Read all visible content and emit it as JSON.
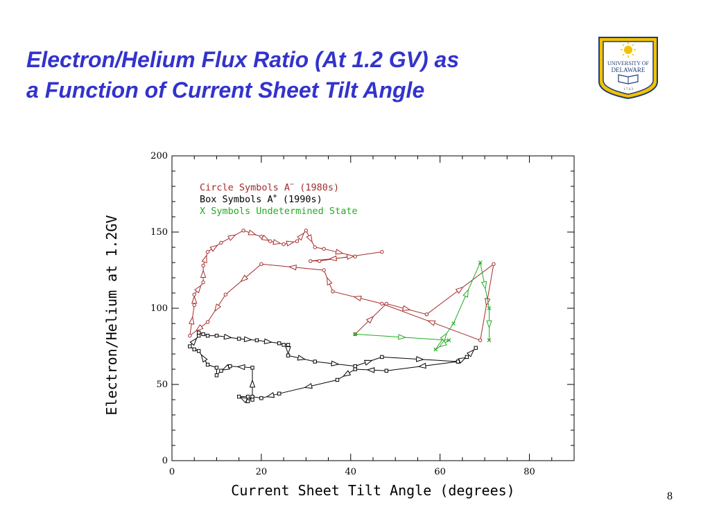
{
  "slide": {
    "title_line1": "Electron/Helium Flux Ratio (At 1.2 GV) as",
    "title_line2": "a Function of Current Sheet Tilt Angle",
    "page_number": "8",
    "title_color": "#3333cc"
  },
  "logo": {
    "line1": "UNIVERSITY OF",
    "line2": "DELAWARE",
    "year": "1 7 4 3",
    "primary_color": "#1f3a7a",
    "accent_color": "#f2c200"
  },
  "chart_data": {
    "type": "line",
    "title": "",
    "xlabel": "Current Sheet Tilt Angle (degrees)",
    "ylabel": "Electron/Helium at 1.2GV",
    "xlim": [
      0,
      90
    ],
    "ylim": [
      0,
      200
    ],
    "xticks": [
      0,
      20,
      40,
      60,
      80
    ],
    "yticks": [
      0,
      50,
      100,
      150,
      200
    ],
    "grid": false,
    "legend_position": "top-left",
    "legend": [
      {
        "text": "Circle Symbols A",
        "sup": "−",
        "suffix": " (1980s)",
        "color": "#a52a2a"
      },
      {
        "text": "Box Symbols A",
        "sup": "+",
        "suffix": " (1990s)",
        "color": "#000000"
      },
      {
        "text": "X Symbols Undetermined State",
        "sup": "",
        "suffix": "",
        "color": "#22aa22"
      }
    ],
    "series": [
      {
        "name": "Circle Symbols A− (1980s)",
        "marker": "circle",
        "color": "#a52a2a",
        "x": [
          41,
          48,
          57,
          72,
          69,
          47,
          36,
          34,
          20,
          12,
          8,
          4,
          5,
          5,
          7,
          7,
          8,
          11,
          16,
          20,
          22,
          25,
          28,
          30,
          32,
          34,
          41,
          31,
          33,
          47
        ],
        "y": [
          83,
          103,
          96,
          129,
          79,
          103,
          111,
          125,
          129,
          109,
          91,
          82,
          102,
          109,
          117,
          128,
          137,
          143,
          151,
          147,
          144,
          142,
          144,
          151,
          140,
          139,
          134,
          131,
          131,
          137
        ]
      },
      {
        "name": "Box Symbols A+ (1990s)",
        "marker": "box",
        "color": "#000000",
        "x": [
          64,
          48,
          41,
          37,
          24,
          20,
          18,
          17,
          15,
          17,
          18,
          18,
          13,
          11,
          10,
          10,
          8,
          6,
          5,
          4,
          6,
          6,
          7,
          8,
          10,
          15,
          19,
          24,
          25,
          26,
          26,
          32,
          41,
          47,
          64,
          66,
          68
        ],
        "y": [
          65,
          59,
          60,
          53,
          44,
          41,
          42,
          39,
          42,
          42,
          40,
          61,
          62,
          59,
          56,
          61,
          63,
          72,
          73,
          75,
          82,
          84,
          83,
          82,
          82,
          80,
          79,
          77,
          76,
          76,
          69,
          65,
          62,
          68,
          65,
          68,
          74
        ]
      },
      {
        "name": "X Symbols Undetermined State",
        "marker": "x",
        "color": "#22aa22",
        "x": [
          41,
          62,
          59,
          63,
          69,
          71,
          71
        ],
        "y": [
          83,
          79,
          73,
          90,
          130,
          100,
          79
        ]
      }
    ]
  }
}
